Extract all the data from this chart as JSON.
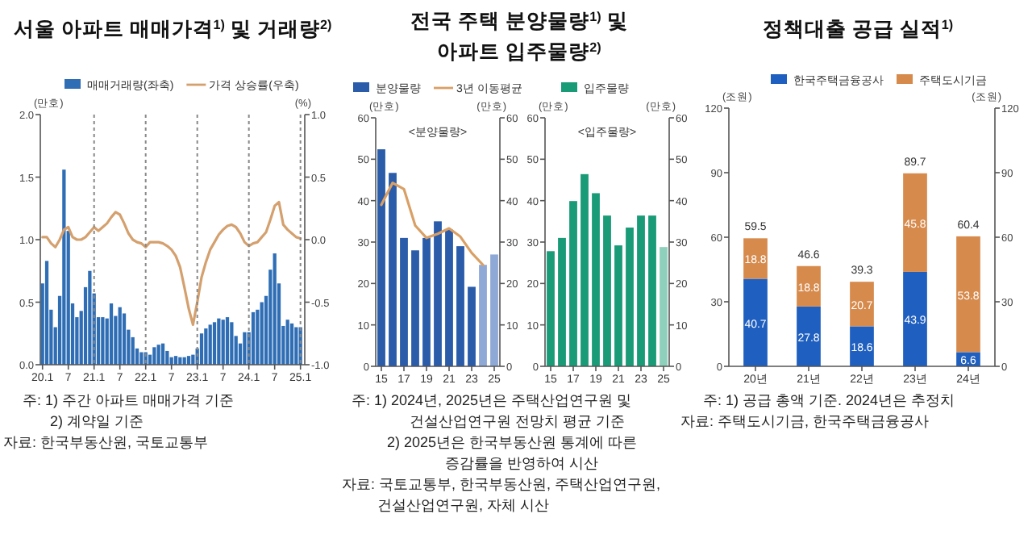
{
  "chart_data": [
    {
      "type": "bar",
      "title": "서울 아파트 매매가격$^{1)}$ 및 거래량$^{2)}$",
      "x": [
        "2020-01",
        "2020-02",
        "2020-03",
        "2020-04",
        "2020-05",
        "2020-06",
        "2020-07",
        "2020-08",
        "2020-09",
        "2020-10",
        "2020-11",
        "2020-12",
        "2021-01",
        "2021-02",
        "2021-03",
        "2021-04",
        "2021-05",
        "2021-06",
        "2021-07",
        "2021-08",
        "2021-09",
        "2021-10",
        "2021-11",
        "2021-12",
        "2022-01",
        "2022-02",
        "2022-03",
        "2022-04",
        "2022-05",
        "2022-06",
        "2022-07",
        "2022-08",
        "2022-09",
        "2022-10",
        "2022-11",
        "2022-12",
        "2023-01",
        "2023-02",
        "2023-03",
        "2023-04",
        "2023-05",
        "2023-06",
        "2023-07",
        "2023-08",
        "2023-09",
        "2023-10",
        "2023-11",
        "2023-12",
        "2024-01",
        "2024-02",
        "2024-03",
        "2024-04",
        "2024-05",
        "2024-06",
        "2024-07",
        "2024-08",
        "2024-09",
        "2024-10",
        "2024-11",
        "2024-12",
        "2025-01"
      ],
      "xlim": [
        "2019-12-16",
        "2025-02-01"
      ],
      "xticks": [
        {
          "value": "2020-01",
          "label": "20.1"
        },
        {
          "value": "2020-07",
          "label": "7"
        },
        {
          "value": "2021-01",
          "label": "21.1"
        },
        {
          "value": "2021-07",
          "label": "7"
        },
        {
          "value": "2022-01",
          "label": "22.1"
        },
        {
          "value": "2022-07",
          "label": "7"
        },
        {
          "value": "2023-01",
          "label": "23.1"
        },
        {
          "value": "2023-07",
          "label": "7"
        },
        {
          "value": "2024-01",
          "label": "24.1"
        },
        {
          "value": "2024-07",
          "label": "7"
        },
        {
          "value": "2025-01",
          "label": "25.1"
        }
      ],
      "series": [
        {
          "name": "매매거래량(좌축)",
          "type": "bar",
          "color": "#2f6eb5",
          "values": [
            0.65,
            0.83,
            0.44,
            0.3,
            0.55,
            1.56,
            1.07,
            0.49,
            0.38,
            0.43,
            0.62,
            0.75,
            0.57,
            0.38,
            0.38,
            0.37,
            0.49,
            0.39,
            0.46,
            0.41,
            0.28,
            0.22,
            0.13,
            0.1,
            0.1,
            0.08,
            0.14,
            0.16,
            0.17,
            0.11,
            0.06,
            0.07,
            0.06,
            0.06,
            0.07,
            0.08,
            0.13,
            0.25,
            0.29,
            0.32,
            0.34,
            0.37,
            0.36,
            0.38,
            0.34,
            0.23,
            0.17,
            0.26,
            0.26,
            0.42,
            0.44,
            0.5,
            0.55,
            0.76,
            0.89,
            0.65,
            0.31,
            0.36,
            0.33,
            0.3,
            0.3
          ]
        },
        {
          "name": "가격 상승률(우축)",
          "type": "line",
          "axis": "y2",
          "color": "#d4a06e",
          "values": [
            0.02,
            0.02,
            -0.03,
            -0.06,
            0.0,
            0.08,
            0.1,
            0.02,
            0.0,
            0.0,
            0.02,
            0.06,
            0.1,
            0.07,
            0.1,
            0.13,
            0.18,
            0.22,
            0.2,
            0.13,
            0.05,
            0.0,
            -0.02,
            -0.03,
            -0.06,
            -0.02,
            -0.02,
            -0.02,
            -0.03,
            -0.05,
            -0.08,
            -0.13,
            -0.22,
            -0.38,
            -0.55,
            -0.68,
            -0.5,
            -0.3,
            -0.18,
            -0.08,
            -0.02,
            0.04,
            0.08,
            0.11,
            0.12,
            0.1,
            0.05,
            -0.02,
            -0.05,
            -0.03,
            -0.02,
            0.02,
            0.06,
            0.16,
            0.27,
            0.3,
            0.12,
            0.08,
            0.05,
            0.02,
            0.01
          ]
        }
      ],
      "ylim": [
        0,
        2
      ],
      "yticks": [
        {
          "value": 0,
          "label": "0.0"
        },
        {
          "value": 0.5,
          "label": "0.5"
        },
        {
          "value": 1,
          "label": "1.0"
        },
        {
          "value": 1.5,
          "label": "1.5"
        },
        {
          "value": 2,
          "label": "2.0"
        }
      ],
      "y2lim": [
        -1,
        1
      ],
      "y2ticks": [
        {
          "value": -1,
          "label": "-1.0"
        },
        {
          "value": -0.5,
          "label": "-0.5"
        },
        {
          "value": 0,
          "label": "0.0"
        },
        {
          "value": 0.5,
          "label": "0.5"
        },
        {
          "value": 1,
          "label": "1.0"
        }
      ],
      "ylabel": "(만호)",
      "y2label": "(%)",
      "legend": "top",
      "ref_lines": [
        {
          "axis": "x",
          "value": "2021-01",
          "color": "#888888",
          "line_style": "dotted"
        },
        {
          "axis": "x",
          "value": "2022-01",
          "color": "#888888",
          "line_style": "dotted"
        },
        {
          "axis": "x",
          "value": "2023-01",
          "color": "#888888",
          "line_style": "dotted"
        },
        {
          "axis": "x",
          "value": "2024-01",
          "color": "#888888",
          "line_style": "dotted"
        },
        {
          "axis": "x",
          "value": "2025-01",
          "color": "#888888",
          "line_style": "dotted"
        }
      ],
      "annotations": [
        "주: 1) 주간 아파트 매매가격 기준",
        "2) 계약일 기준",
        "자료: 한국부동산원, 국토교통부"
      ]
    },
    {
      "type": "bar",
      "title": "전국 주택 분양물량$^{1)}$ 및 아파트 입주물량$^{2)}$",
      "subtitle": "<분양물량>",
      "categories": [
        "15",
        null,
        "17",
        null,
        "19",
        null,
        "21",
        null,
        "23",
        null,
        "25"
      ],
      "series": [
        {
          "name": "분양물량",
          "type": "bar",
          "color": "#2a5caa",
          "colors": [
            "#2a5caa",
            "#2a5caa",
            "#2a5caa",
            "#2a5caa",
            "#2a5caa",
            "#2a5caa",
            "#2a5caa",
            "#2a5caa",
            "#2a5caa",
            "#8fa9d6",
            "#8fa9d6"
          ],
          "values": [
            52.4,
            46.7,
            31,
            28,
            31,
            35,
            33,
            29,
            19.2,
            24.5,
            27
          ]
        },
        {
          "name": "3년 이동평균",
          "type": "line",
          "color": "#d9a066",
          "values": [
            39,
            44.3,
            42.8,
            34,
            31,
            32,
            33.3,
            31.3,
            27.4,
            24.5,
            null
          ]
        }
      ],
      "ylim": [
        0,
        60
      ],
      "yticks": [
        0,
        10,
        20,
        30,
        40,
        50,
        60
      ],
      "y2lim": [
        0,
        60
      ],
      "y2ticks": [
        0,
        10,
        20,
        30,
        40,
        50,
        60
      ],
      "ylabel": "(만호)",
      "y2label": "(만호)",
      "legend": "top",
      "annotations": [
        "주: 1) 2024년, 2025년은 주택산업연구원 및 건설산업연구원 전망치 평균 기준",
        "2) 2025년은 한국부동산원 통계에 따른 증감률을 반영하여 시산",
        "자료: 국토교통부, 한국부동산원, 주택산업연구원, 건설산업연구원, 자체 시산"
      ]
    },
    {
      "type": "bar",
      "subtitle": "<입주물량>",
      "categories": [
        "15",
        null,
        "17",
        null,
        "19",
        null,
        "21",
        null,
        "23",
        null,
        "25"
      ],
      "series": [
        {
          "name": "입주물량",
          "type": "bar",
          "color": "#199b78",
          "colors": [
            "#199b78",
            "#199b78",
            "#199b78",
            "#199b78",
            "#199b78",
            "#199b78",
            "#199b78",
            "#199b78",
            "#199b78",
            "#199b78",
            "#8fd0bc"
          ],
          "values": [
            27.8,
            31,
            39.9,
            46.4,
            41.8,
            36.4,
            29.2,
            33.5,
            36.4,
            36.4,
            28.8
          ]
        }
      ],
      "ylim": [
        0,
        60
      ],
      "yticks": [
        0,
        10,
        20,
        30,
        40,
        50,
        60
      ],
      "y2lim": [
        0,
        60
      ],
      "y2ticks": [
        0,
        10,
        20,
        30,
        40,
        50,
        60
      ],
      "ylabel": "(만호)",
      "y2label": "(만호)",
      "legend": "top"
    },
    {
      "type": "bar",
      "title": "정책대출 공급 실적$^{1)}$",
      "stacked": true,
      "data_labels": true,
      "categories": [
        "20년",
        "21년",
        "22년",
        "23년",
        "24년"
      ],
      "series": [
        {
          "name": "한국주택금융공사",
          "color": "#1f5fbf",
          "values": [
            40.7,
            27.8,
            18.6,
            43.9,
            6.6
          ]
        },
        {
          "name": "주택도시기금",
          "color": "#d68a4c",
          "values": [
            18.8,
            18.8,
            20.7,
            45.8,
            53.8
          ]
        }
      ],
      "totals": [
        "59.5",
        "46.6",
        "39.3",
        "89.7",
        "60.4"
      ],
      "ylim": [
        0,
        120
      ],
      "yticks": [
        0,
        30,
        60,
        90,
        120
      ],
      "y2lim": [
        0,
        120
      ],
      "y2ticks": [
        0,
        30,
        60,
        90,
        120
      ],
      "ylabel": "(조원)",
      "y2label": "(조원)",
      "legend": "top",
      "annotations": [
        "주: 1) 공급 총액 기준. 2024년은 추정치",
        "자료: 주택도시기금, 한국주택금융공사"
      ]
    }
  ]
}
